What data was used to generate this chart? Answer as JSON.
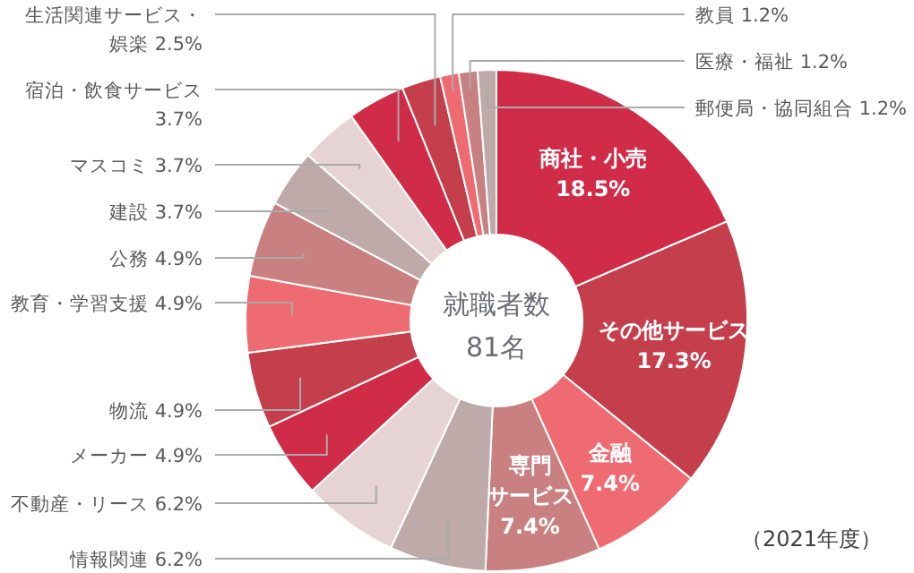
{
  "chart_data": {
    "type": "donut",
    "categories": [
      "商社・小売",
      "その他サービス",
      "金融",
      "専門サービス",
      "情報関連 6.2%",
      "不動産・リース 6.2%",
      "メーカー 4.9%",
      "物流 4.9%",
      "教育・学習支援 4.9%",
      "公務 4.9%",
      "建設 3.7%",
      "マスコミ 3.7%",
      "宿泊・飲食サービス 3.7%",
      "生活関連サービス・娯楽 2.5%",
      "教員 1.2%",
      "医療・福祉 1.2%",
      "郵便局・協同組合 1.2%"
    ],
    "value_labels": [
      "18.5%",
      "17.3%",
      "7.4%",
      "7.4%",
      null,
      null,
      null,
      null,
      null,
      null,
      null,
      null,
      null,
      null,
      null,
      null,
      null
    ],
    "values": [
      18.5,
      17.3,
      7.4,
      7.4,
      6.2,
      6.2,
      4.9,
      4.9,
      4.9,
      4.9,
      3.7,
      3.7,
      3.7,
      2.5,
      1.2,
      1.2,
      1.2
    ],
    "colors": [
      "#d02c48",
      "#c43e4b",
      "#ee6b71",
      "#c98080",
      "#bfaaaa",
      "#e6d4d4",
      "#d02c48",
      "#c43e4b",
      "#ee6b71",
      "#c98080",
      "#bfaaaa",
      "#e6d4d4",
      "#d02c48",
      "#c43e4b",
      "#ee6b71",
      "#c98080",
      "#bfaaaa"
    ],
    "annotations": [
      "就職者数",
      "81名",
      "（2021年度）"
    ]
  }
}
